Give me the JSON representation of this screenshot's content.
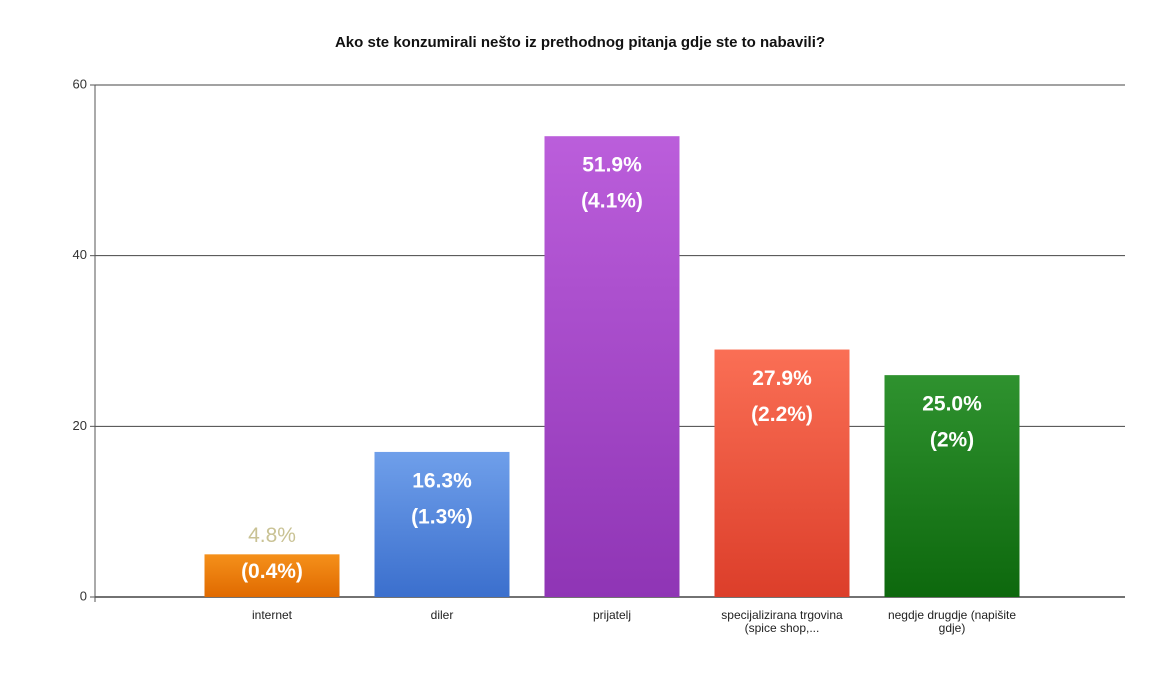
{
  "chart_data": {
    "type": "bar",
    "title": "Ako ste konzumirali nešto iz prethodnog pitanja gdje ste to nabavili?",
    "categories": [
      "internet",
      "diler",
      "prijatelj",
      "specijalizirana trgovina (spice shop,...",
      "negdje drugdje (napišite gdje)"
    ],
    "values": [
      5,
      17,
      54,
      29,
      26
    ],
    "percent_labels": [
      "4.8%",
      "16.3%",
      "51.9%",
      "27.9%",
      "25.0%"
    ],
    "share_labels": [
      "(0.4%)",
      "(1.3%)",
      "(4.1%)",
      "(2.2%)",
      "(2%)"
    ],
    "colors": [
      [
        "#f5901a",
        "#e06a00"
      ],
      [
        "#6f9fea",
        "#3b6fcd"
      ],
      [
        "#bb5edb",
        "#8f35b5"
      ],
      [
        "#fa6f55",
        "#dc3e2a"
      ],
      [
        "#2f922f",
        "#0d680d"
      ]
    ],
    "ylim": [
      0,
      60
    ],
    "yticks": [
      0,
      20,
      40,
      60
    ],
    "grid": true
  }
}
